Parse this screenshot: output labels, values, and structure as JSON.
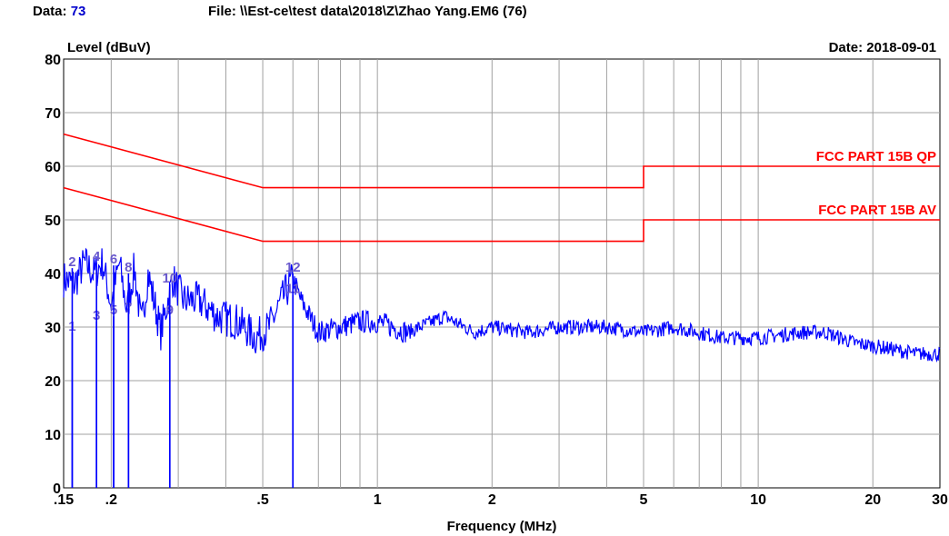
{
  "header": {
    "data_label": "Data:",
    "data_value": "73",
    "file_text": "File: \\\\Est-ce\\test data\\2018\\Z\\Zhao Yang.EM6  (76)"
  },
  "colors": {
    "trace": "#0000ff",
    "limit": "#ff0000",
    "grid": "#a0a0a0",
    "marker_label": "#6a5acd"
  },
  "chart_data": {
    "type": "line",
    "title": "",
    "ylabel": "Level (dBuV)",
    "xlabel": "Frequency (MHz)",
    "date_text": "Date: 2018-09-01",
    "x_scale": "log",
    "xlim": [
      0.15,
      30
    ],
    "ylim": [
      0,
      80
    ],
    "grid": true,
    "x_ticks": [
      {
        "v": 0.15,
        "label": ".15"
      },
      {
        "v": 0.2,
        "label": ".2"
      },
      {
        "v": 0.5,
        "label": ".5"
      },
      {
        "v": 1,
        "label": "1"
      },
      {
        "v": 2,
        "label": "2"
      },
      {
        "v": 5,
        "label": "5"
      },
      {
        "v": 10,
        "label": "10"
      },
      {
        "v": 20,
        "label": "20"
      },
      {
        "v": 30,
        "label": "30"
      }
    ],
    "y_ticks": [
      0,
      10,
      20,
      30,
      40,
      50,
      60,
      70,
      80
    ],
    "limits": [
      {
        "name": "FCC PART 15B QP",
        "points": [
          [
            0.15,
            66
          ],
          [
            0.5,
            56
          ],
          [
            5,
            56
          ],
          [
            5,
            60
          ],
          [
            30,
            60
          ]
        ]
      },
      {
        "name": "FCC PART 15B AV",
        "points": [
          [
            0.15,
            56
          ],
          [
            0.5,
            46
          ],
          [
            5,
            46
          ],
          [
            5,
            50
          ],
          [
            30,
            50
          ]
        ]
      }
    ],
    "trace_envelope": [
      [
        0.15,
        39
      ],
      [
        0.16,
        38
      ],
      [
        0.17,
        42
      ],
      [
        0.18,
        40
      ],
      [
        0.19,
        42
      ],
      [
        0.2,
        34
      ],
      [
        0.21,
        42
      ],
      [
        0.22,
        33
      ],
      [
        0.23,
        41
      ],
      [
        0.24,
        30
      ],
      [
        0.25,
        40
      ],
      [
        0.27,
        29
      ],
      [
        0.29,
        39
      ],
      [
        0.31,
        35
      ],
      [
        0.34,
        35
      ],
      [
        0.38,
        32
      ],
      [
        0.43,
        31
      ],
      [
        0.48,
        28
      ],
      [
        0.52,
        30
      ],
      [
        0.57,
        36
      ],
      [
        0.6,
        39
      ],
      [
        0.63,
        35
      ],
      [
        0.7,
        29
      ],
      [
        0.8,
        30
      ],
      [
        0.9,
        31
      ],
      [
        1.0,
        31
      ],
      [
        1.2,
        29
      ],
      [
        1.5,
        32
      ],
      [
        1.8,
        29
      ],
      [
        2.0,
        30
      ],
      [
        2.5,
        29
      ],
      [
        3.0,
        30
      ],
      [
        4.0,
        30
      ],
      [
        5.0,
        29
      ],
      [
        6.0,
        30
      ],
      [
        8.0,
        28
      ],
      [
        10.0,
        28
      ],
      [
        13.0,
        29
      ],
      [
        15.0,
        29
      ],
      [
        18.0,
        27
      ],
      [
        22.0,
        26
      ],
      [
        26.0,
        25
      ],
      [
        30.0,
        25
      ]
    ],
    "markers": [
      {
        "label": "1",
        "f": 0.158,
        "level": 29
      },
      {
        "label": "2",
        "f": 0.158,
        "level": 41
      },
      {
        "label": "3",
        "f": 0.183,
        "level": 31
      },
      {
        "label": "4",
        "f": 0.183,
        "level": 42
      },
      {
        "label": "5",
        "f": 0.203,
        "level": 32
      },
      {
        "label": "6",
        "f": 0.203,
        "level": 41.5
      },
      {
        "label": "7",
        "f": 0.222,
        "level": 32.5
      },
      {
        "label": "8",
        "f": 0.222,
        "level": 40
      },
      {
        "label": "9",
        "f": 0.285,
        "level": 32
      },
      {
        "label": "10",
        "f": 0.285,
        "level": 38
      },
      {
        "label": "11",
        "f": 0.6,
        "level": 36
      },
      {
        "label": "12",
        "f": 0.6,
        "level": 40
      }
    ]
  }
}
